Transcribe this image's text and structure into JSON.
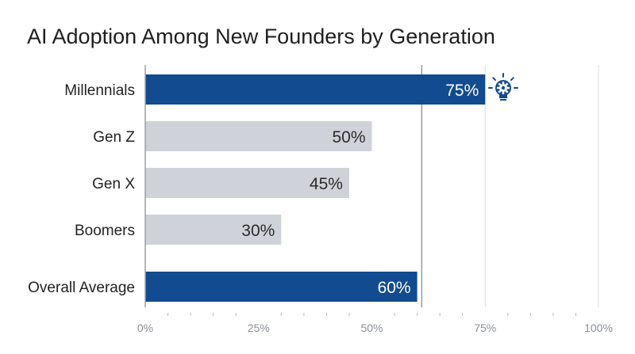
{
  "chart_data": {
    "type": "bar",
    "orientation": "horizontal",
    "title": "AI Adoption Among New Founders by Generation",
    "categories": [
      "Millennials",
      "Gen Z",
      "Gen X",
      "Boomers",
      "Overall Average"
    ],
    "values": [
      75,
      50,
      45,
      30,
      60
    ],
    "value_labels": [
      "75%",
      "50%",
      "45%",
      "30%",
      "60%"
    ],
    "highlighted": [
      true,
      false,
      false,
      false,
      true
    ],
    "xlim": [
      0,
      100
    ],
    "x_ticks": [
      0,
      25,
      50,
      75,
      100
    ],
    "x_tick_labels": [
      "0%",
      "25%",
      "50%",
      "75%",
      "100%"
    ],
    "reference_line": {
      "value": 61,
      "label": ""
    },
    "grid": "vertical lines at 75% and 100%",
    "annotation_icon": "lightbulb-gear-icon",
    "colors": {
      "highlight": "#124b8f",
      "normal": "#cfd2d8",
      "highlight_label": "#ffffff",
      "normal_label": "#2b2b2b",
      "axis": "#9aa0a6"
    }
  }
}
